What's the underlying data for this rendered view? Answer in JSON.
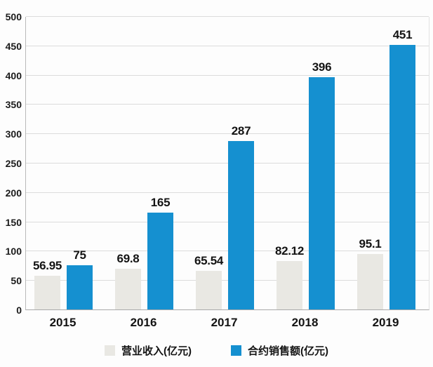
{
  "chart_data": {
    "type": "bar",
    "title": "",
    "xlabel": "",
    "ylabel": "",
    "categories": [
      "2015",
      "2016",
      "2017",
      "2018",
      "2019"
    ],
    "series": [
      {
        "name": "营业收入(亿元)",
        "values": [
          56.95,
          69.8,
          65.54,
          82.12,
          95.1
        ],
        "labels": [
          "56.95",
          "69.8",
          "65.54",
          "82.12",
          "95.1"
        ],
        "color": "#e9e8e3"
      },
      {
        "name": "合约销售额(亿元)",
        "values": [
          75,
          165,
          287,
          396,
          451
        ],
        "labels": [
          "75",
          "165",
          "287",
          "396",
          "451"
        ],
        "color": "#1590d0"
      }
    ],
    "ylim": [
      0,
      500
    ],
    "yticks": [
      0,
      50,
      100,
      150,
      200,
      250,
      300,
      350,
      400,
      450,
      500
    ],
    "grid": true,
    "legend_position": "bottom"
  },
  "colors": {
    "bar_gray": "#e9e8e3",
    "bar_blue": "#1590d0",
    "gridline": "#dcdcdc",
    "axis": "#b9b9b9",
    "text": "#1b1b1b",
    "background": "#fdfdfd"
  }
}
